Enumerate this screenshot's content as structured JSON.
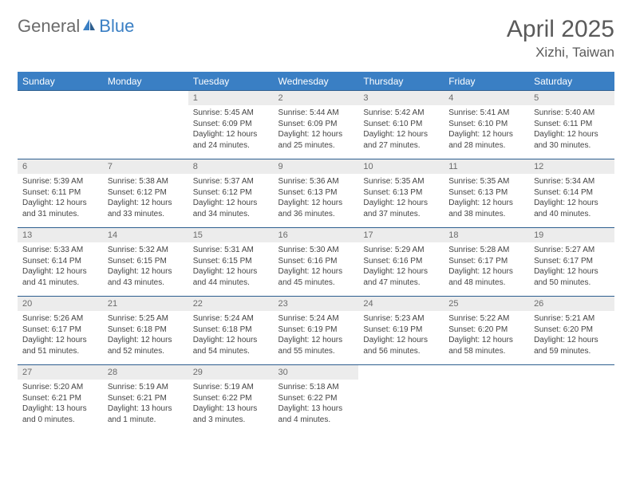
{
  "logo": {
    "general": "General",
    "blue": "Blue",
    "icon_color": "#3a7fc4"
  },
  "title": "April 2025",
  "location": "Xizhi, Taiwan",
  "colors": {
    "header_bg": "#3a7fc4",
    "header_text": "#ffffff",
    "row_border": "#2d5e8f",
    "daynum_bg": "#ececec",
    "daynum_text": "#6b6b6b",
    "body_text": "#444444",
    "title_text": "#5a5a5a",
    "page_bg": "#ffffff"
  },
  "day_headers": [
    "Sunday",
    "Monday",
    "Tuesday",
    "Wednesday",
    "Thursday",
    "Friday",
    "Saturday"
  ],
  "weeks": [
    [
      {
        "n": "",
        "sr": "",
        "ss": "",
        "dl": ""
      },
      {
        "n": "",
        "sr": "",
        "ss": "",
        "dl": ""
      },
      {
        "n": "1",
        "sr": "Sunrise: 5:45 AM",
        "ss": "Sunset: 6:09 PM",
        "dl": "Daylight: 12 hours and 24 minutes."
      },
      {
        "n": "2",
        "sr": "Sunrise: 5:44 AM",
        "ss": "Sunset: 6:09 PM",
        "dl": "Daylight: 12 hours and 25 minutes."
      },
      {
        "n": "3",
        "sr": "Sunrise: 5:42 AM",
        "ss": "Sunset: 6:10 PM",
        "dl": "Daylight: 12 hours and 27 minutes."
      },
      {
        "n": "4",
        "sr": "Sunrise: 5:41 AM",
        "ss": "Sunset: 6:10 PM",
        "dl": "Daylight: 12 hours and 28 minutes."
      },
      {
        "n": "5",
        "sr": "Sunrise: 5:40 AM",
        "ss": "Sunset: 6:11 PM",
        "dl": "Daylight: 12 hours and 30 minutes."
      }
    ],
    [
      {
        "n": "6",
        "sr": "Sunrise: 5:39 AM",
        "ss": "Sunset: 6:11 PM",
        "dl": "Daylight: 12 hours and 31 minutes."
      },
      {
        "n": "7",
        "sr": "Sunrise: 5:38 AM",
        "ss": "Sunset: 6:12 PM",
        "dl": "Daylight: 12 hours and 33 minutes."
      },
      {
        "n": "8",
        "sr": "Sunrise: 5:37 AM",
        "ss": "Sunset: 6:12 PM",
        "dl": "Daylight: 12 hours and 34 minutes."
      },
      {
        "n": "9",
        "sr": "Sunrise: 5:36 AM",
        "ss": "Sunset: 6:13 PM",
        "dl": "Daylight: 12 hours and 36 minutes."
      },
      {
        "n": "10",
        "sr": "Sunrise: 5:35 AM",
        "ss": "Sunset: 6:13 PM",
        "dl": "Daylight: 12 hours and 37 minutes."
      },
      {
        "n": "11",
        "sr": "Sunrise: 5:35 AM",
        "ss": "Sunset: 6:13 PM",
        "dl": "Daylight: 12 hours and 38 minutes."
      },
      {
        "n": "12",
        "sr": "Sunrise: 5:34 AM",
        "ss": "Sunset: 6:14 PM",
        "dl": "Daylight: 12 hours and 40 minutes."
      }
    ],
    [
      {
        "n": "13",
        "sr": "Sunrise: 5:33 AM",
        "ss": "Sunset: 6:14 PM",
        "dl": "Daylight: 12 hours and 41 minutes."
      },
      {
        "n": "14",
        "sr": "Sunrise: 5:32 AM",
        "ss": "Sunset: 6:15 PM",
        "dl": "Daylight: 12 hours and 43 minutes."
      },
      {
        "n": "15",
        "sr": "Sunrise: 5:31 AM",
        "ss": "Sunset: 6:15 PM",
        "dl": "Daylight: 12 hours and 44 minutes."
      },
      {
        "n": "16",
        "sr": "Sunrise: 5:30 AM",
        "ss": "Sunset: 6:16 PM",
        "dl": "Daylight: 12 hours and 45 minutes."
      },
      {
        "n": "17",
        "sr": "Sunrise: 5:29 AM",
        "ss": "Sunset: 6:16 PM",
        "dl": "Daylight: 12 hours and 47 minutes."
      },
      {
        "n": "18",
        "sr": "Sunrise: 5:28 AM",
        "ss": "Sunset: 6:17 PM",
        "dl": "Daylight: 12 hours and 48 minutes."
      },
      {
        "n": "19",
        "sr": "Sunrise: 5:27 AM",
        "ss": "Sunset: 6:17 PM",
        "dl": "Daylight: 12 hours and 50 minutes."
      }
    ],
    [
      {
        "n": "20",
        "sr": "Sunrise: 5:26 AM",
        "ss": "Sunset: 6:17 PM",
        "dl": "Daylight: 12 hours and 51 minutes."
      },
      {
        "n": "21",
        "sr": "Sunrise: 5:25 AM",
        "ss": "Sunset: 6:18 PM",
        "dl": "Daylight: 12 hours and 52 minutes."
      },
      {
        "n": "22",
        "sr": "Sunrise: 5:24 AM",
        "ss": "Sunset: 6:18 PM",
        "dl": "Daylight: 12 hours and 54 minutes."
      },
      {
        "n": "23",
        "sr": "Sunrise: 5:24 AM",
        "ss": "Sunset: 6:19 PM",
        "dl": "Daylight: 12 hours and 55 minutes."
      },
      {
        "n": "24",
        "sr": "Sunrise: 5:23 AM",
        "ss": "Sunset: 6:19 PM",
        "dl": "Daylight: 12 hours and 56 minutes."
      },
      {
        "n": "25",
        "sr": "Sunrise: 5:22 AM",
        "ss": "Sunset: 6:20 PM",
        "dl": "Daylight: 12 hours and 58 minutes."
      },
      {
        "n": "26",
        "sr": "Sunrise: 5:21 AM",
        "ss": "Sunset: 6:20 PM",
        "dl": "Daylight: 12 hours and 59 minutes."
      }
    ],
    [
      {
        "n": "27",
        "sr": "Sunrise: 5:20 AM",
        "ss": "Sunset: 6:21 PM",
        "dl": "Daylight: 13 hours and 0 minutes."
      },
      {
        "n": "28",
        "sr": "Sunrise: 5:19 AM",
        "ss": "Sunset: 6:21 PM",
        "dl": "Daylight: 13 hours and 1 minute."
      },
      {
        "n": "29",
        "sr": "Sunrise: 5:19 AM",
        "ss": "Sunset: 6:22 PM",
        "dl": "Daylight: 13 hours and 3 minutes."
      },
      {
        "n": "30",
        "sr": "Sunrise: 5:18 AM",
        "ss": "Sunset: 6:22 PM",
        "dl": "Daylight: 13 hours and 4 minutes."
      },
      {
        "n": "",
        "sr": "",
        "ss": "",
        "dl": ""
      },
      {
        "n": "",
        "sr": "",
        "ss": "",
        "dl": ""
      },
      {
        "n": "",
        "sr": "",
        "ss": "",
        "dl": ""
      }
    ]
  ]
}
